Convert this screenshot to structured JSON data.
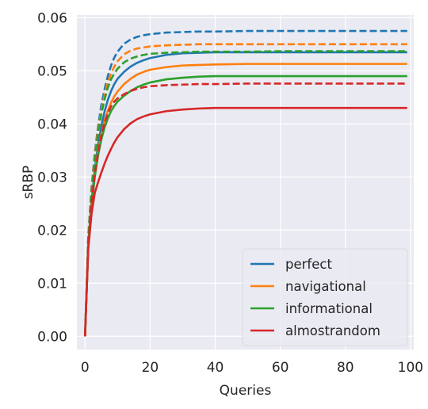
{
  "chart_data": {
    "type": "line",
    "xlabel": "Queries",
    "ylabel": "sRBP",
    "xlim": [
      -2.5,
      101
    ],
    "ylim": [
      -0.0025,
      0.0605
    ],
    "xticks": [
      0,
      20,
      40,
      60,
      80,
      100
    ],
    "yticks": [
      0.0,
      0.01,
      0.02,
      0.03,
      0.04,
      0.05,
      0.06
    ],
    "ytick_labels": [
      "0.00",
      "0.01",
      "0.02",
      "0.03",
      "0.04",
      "0.05",
      "0.06"
    ],
    "grid": true,
    "legend_position": "lower-right",
    "legend": [
      "perfect",
      "navigational",
      "informational",
      "almostrandom"
    ],
    "x": [
      0,
      1,
      2,
      3,
      4,
      5,
      6,
      7,
      8,
      9,
      10,
      12,
      14,
      16,
      18,
      20,
      25,
      30,
      35,
      40,
      50,
      60,
      70,
      80,
      90,
      99
    ],
    "series": [
      {
        "name": "perfect",
        "style": "solid",
        "color": "#1f77b4",
        "values": [
          0,
          0.0175,
          0.0255,
          0.0315,
          0.036,
          0.0395,
          0.0423,
          0.0445,
          0.0462,
          0.0475,
          0.0485,
          0.0498,
          0.0508,
          0.0515,
          0.052,
          0.0524,
          0.053,
          0.0533,
          0.0534,
          0.0535,
          0.0535,
          0.0535,
          0.0535,
          0.0535,
          0.0535,
          0.0535
        ]
      },
      {
        "name": "perfect",
        "style": "dashed",
        "color": "#1f77b4",
        "values": [
          0,
          0.019,
          0.028,
          0.0345,
          0.0395,
          0.0435,
          0.0465,
          0.049,
          0.051,
          0.0525,
          0.0536,
          0.0551,
          0.0559,
          0.0564,
          0.0567,
          0.0569,
          0.0572,
          0.0573,
          0.0574,
          0.0574,
          0.0575,
          0.0575,
          0.0575,
          0.0575,
          0.0575,
          0.0575
        ]
      },
      {
        "name": "navigational",
        "style": "solid",
        "color": "#ff7f0e",
        "values": [
          0,
          0.017,
          0.025,
          0.0305,
          0.0348,
          0.038,
          0.0405,
          0.0425,
          0.044,
          0.0452,
          0.0461,
          0.0475,
          0.0485,
          0.0493,
          0.0498,
          0.0502,
          0.0507,
          0.051,
          0.0511,
          0.0512,
          0.0513,
          0.0513,
          0.0513,
          0.0513,
          0.0513,
          0.0513
        ]
      },
      {
        "name": "navigational",
        "style": "dashed",
        "color": "#ff7f0e",
        "values": [
          0,
          0.0185,
          0.0275,
          0.034,
          0.039,
          0.0425,
          0.0455,
          0.0478,
          0.0495,
          0.0508,
          0.0518,
          0.0531,
          0.0538,
          0.0542,
          0.0544,
          0.0546,
          0.0548,
          0.0549,
          0.055,
          0.055,
          0.055,
          0.055,
          0.055,
          0.055,
          0.055,
          0.055
        ]
      },
      {
        "name": "informational",
        "style": "solid",
        "color": "#2ca02c",
        "values": [
          0,
          0.0168,
          0.0245,
          0.03,
          0.034,
          0.037,
          0.0393,
          0.041,
          0.0424,
          0.0434,
          0.0442,
          0.0453,
          0.0462,
          0.0469,
          0.0474,
          0.0478,
          0.0484,
          0.0487,
          0.0489,
          0.049,
          0.049,
          0.049,
          0.049,
          0.049,
          0.049,
          0.049
        ]
      },
      {
        "name": "informational",
        "style": "dashed",
        "color": "#2ca02c",
        "values": [
          0,
          0.0182,
          0.027,
          0.0335,
          0.0383,
          0.0418,
          0.0446,
          0.0468,
          0.0484,
          0.0495,
          0.0504,
          0.0516,
          0.0523,
          0.0527,
          0.053,
          0.0532,
          0.0534,
          0.0535,
          0.0536,
          0.0536,
          0.0536,
          0.0537,
          0.0537,
          0.0537,
          0.0537,
          0.0537
        ]
      },
      {
        "name": "almostrandom",
        "style": "solid",
        "color": "#d62728",
        "values": [
          0,
          0.0165,
          0.023,
          0.027,
          0.029,
          0.0308,
          0.0325,
          0.034,
          0.0353,
          0.0365,
          0.0375,
          0.039,
          0.0401,
          0.0409,
          0.0414,
          0.0418,
          0.0424,
          0.0427,
          0.0429,
          0.043,
          0.043,
          0.043,
          0.043,
          0.043,
          0.043,
          0.043
        ]
      },
      {
        "name": "almostrandom",
        "style": "dashed",
        "color": "#d62728",
        "values": [
          0,
          0.0172,
          0.025,
          0.0305,
          0.0345,
          0.0378,
          0.0402,
          0.042,
          0.0433,
          0.0442,
          0.0448,
          0.0456,
          0.0462,
          0.0466,
          0.0469,
          0.0471,
          0.0473,
          0.0474,
          0.0475,
          0.0475,
          0.0476,
          0.0476,
          0.0476,
          0.0476,
          0.0476,
          0.0476
        ]
      }
    ]
  }
}
